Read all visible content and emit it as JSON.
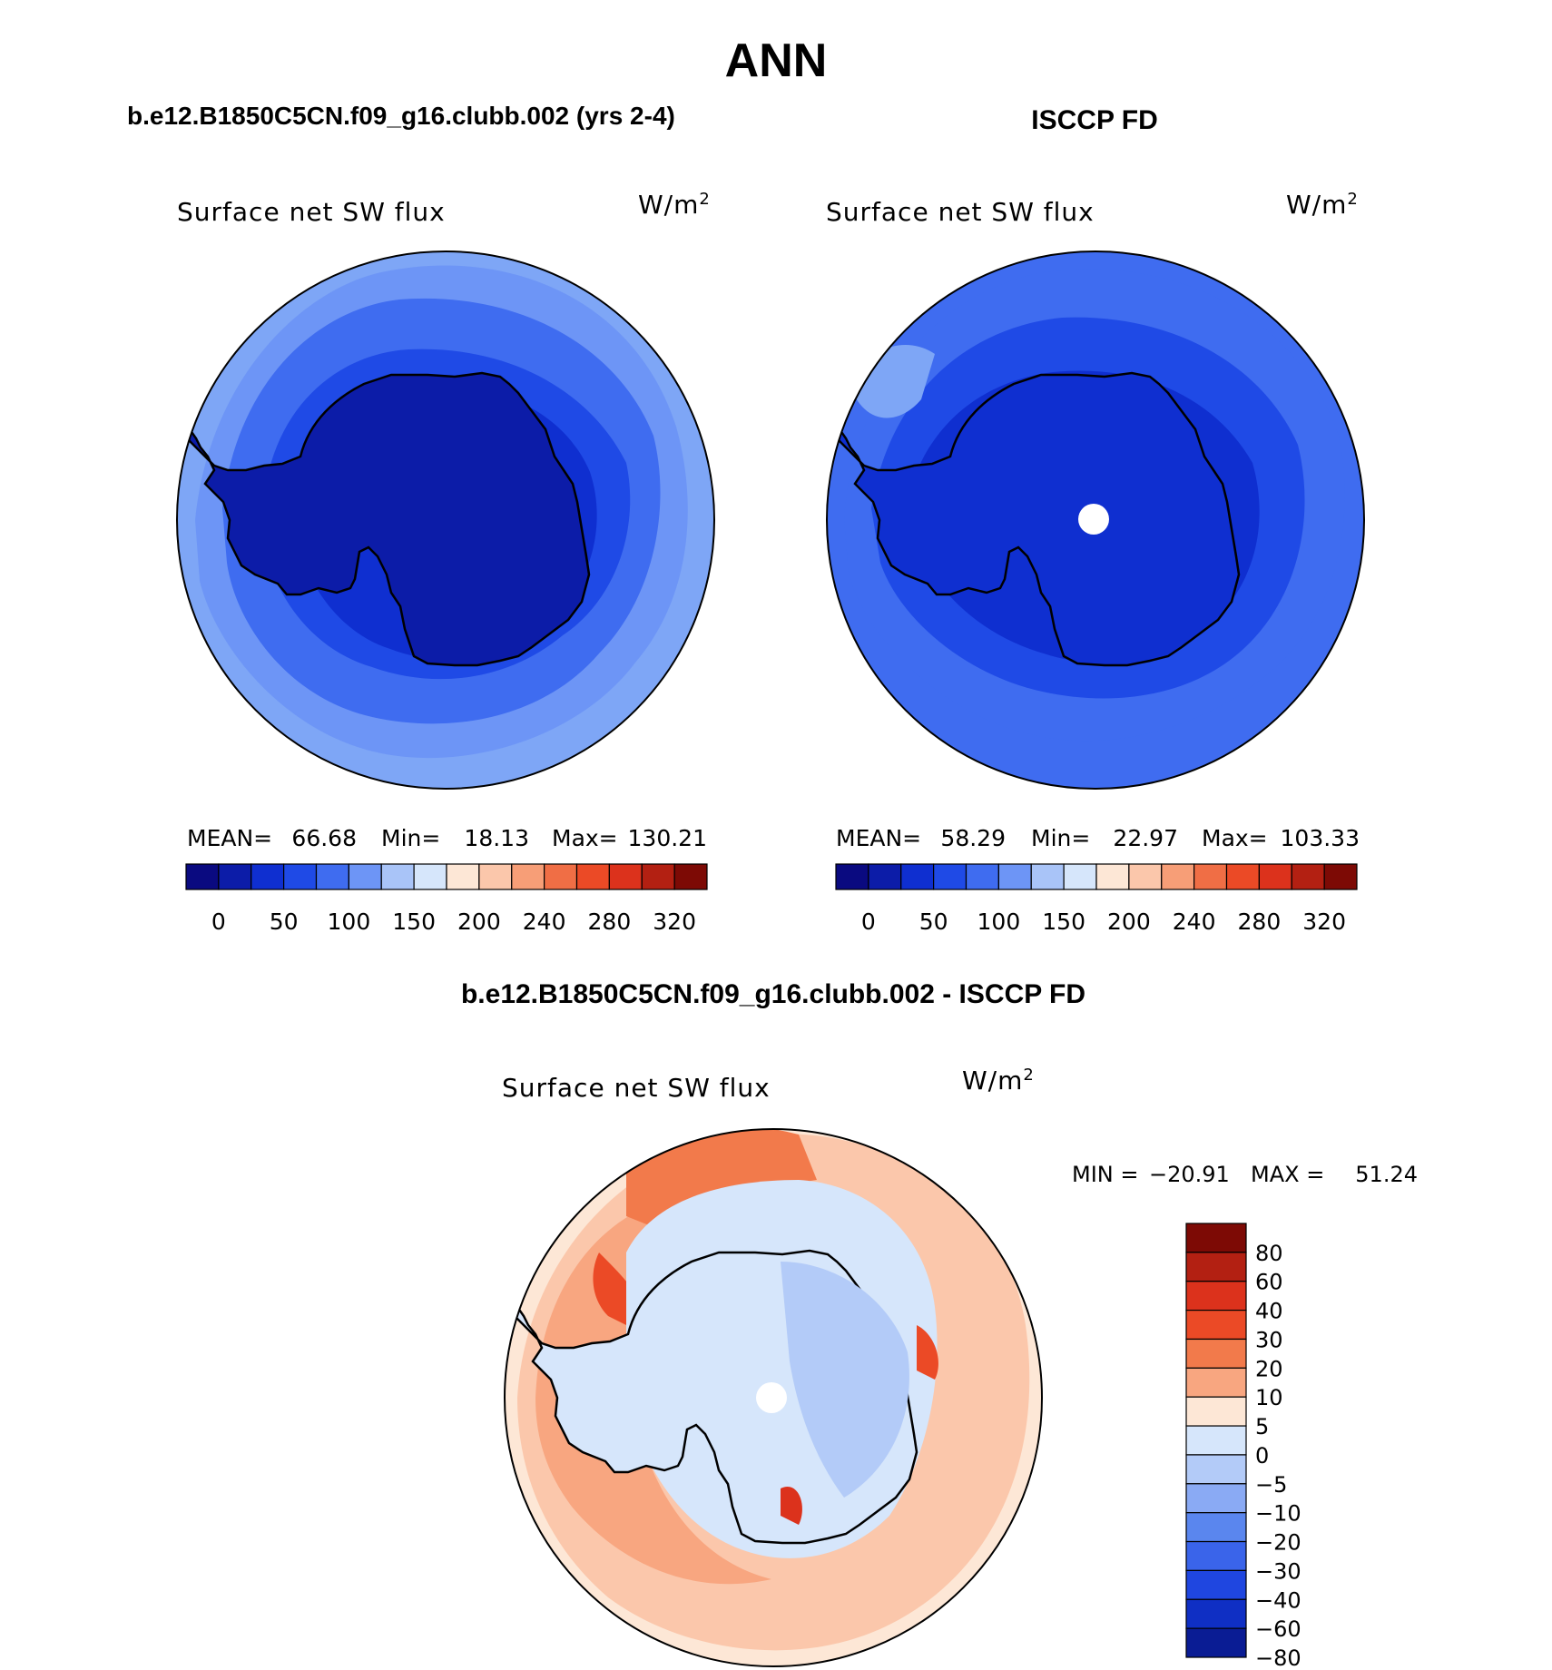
{
  "title": "ANN",
  "panels": [
    {
      "heading": "b.e12.B1850C5CN.f09_g16.clubb.002 (yrs 2-4)",
      "field": "Surface net SW flux",
      "units_base": "W/m",
      "units_exp": "2",
      "stats": {
        "mean_label": "MEAN=",
        "mean": "66.68",
        "min_label": "Min=",
        "min": "18.13",
        "max_label": "Max=",
        "max": "130.21"
      },
      "has_pole_hole": false
    },
    {
      "heading": "ISCCP FD",
      "field": "Surface net SW flux",
      "units_base": "W/m",
      "units_exp": "2",
      "stats": {
        "mean_label": "MEAN=",
        "mean": "58.29",
        "min_label": "Min=",
        "min": "22.97",
        "max_label": "Max=",
        "max": "103.33"
      },
      "has_pole_hole": true
    }
  ],
  "abs_colorbar": {
    "colors": [
      "#0a0a80",
      "#0c1ca8",
      "#0f2fd0",
      "#1f4ae6",
      "#3f6cf0",
      "#6d95f6",
      "#a9c4f8",
      "#d6e6fb",
      "#fde7d6",
      "#fbc7ab",
      "#f79e77",
      "#f06e45",
      "#eb4a26",
      "#dc321c",
      "#b32012",
      "#7d0a05"
    ],
    "tick_labels": [
      "0",
      "50",
      "100",
      "150",
      "200",
      "240",
      "280",
      "320"
    ]
  },
  "diff_panel": {
    "heading": "b.e12.B1850C5CN.f09_g16.clubb.002 - ISCCP FD",
    "field": "Surface net SW flux",
    "units_base": "W/m",
    "units_exp": "2",
    "min_label": "MIN =",
    "min": "−20.91",
    "max_label": "MAX =",
    "max": "51.24",
    "colorbar": {
      "colors": [
        "#7d0a05",
        "#b32012",
        "#dc321c",
        "#eb4a26",
        "#f27a4b",
        "#f8a680",
        "#fde7d6",
        "#d6e6fb",
        "#b3cbf8",
        "#8aaaf4",
        "#5a86ee",
        "#3a64ea",
        "#1f46e0",
        "#0f2fc4",
        "#0a1c94"
      ],
      "tick_labels": [
        "80",
        "60",
        "40",
        "30",
        "20",
        "10",
        "5",
        "0",
        "−5",
        "−10",
        "−20",
        "−30",
        "−40",
        "−60",
        "−80"
      ]
    }
  }
}
